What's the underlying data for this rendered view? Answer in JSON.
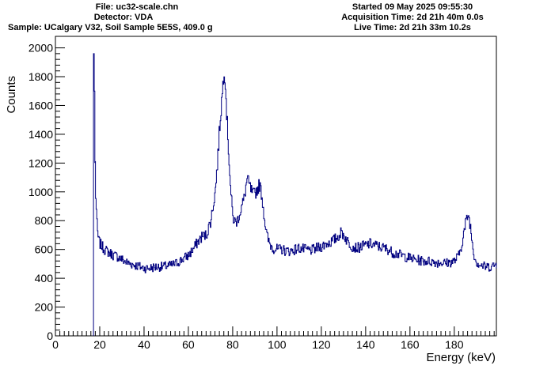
{
  "header": {
    "file": "File: uc32-scale.chn",
    "detector": "Detector: VDA",
    "sample": "Sample: UCalgary V32, Soil Sample 5E5S, 409.0 g",
    "started": "Started 09 May 2025 09:55:30",
    "acquisition": "Acquisition Time: 2d 21h 40m 0.0s",
    "live": "Live Time: 2d 21h 33m 10.2s"
  },
  "chart_data": {
    "type": "line",
    "xlabel": "Energy (keV)",
    "ylabel": "Counts",
    "xlim": [
      0,
      199
    ],
    "ylim": [
      0,
      2080
    ],
    "x_ticks": [
      0,
      20,
      40,
      60,
      80,
      100,
      120,
      140,
      160,
      180
    ],
    "y_ticks": [
      0,
      200,
      400,
      600,
      800,
      1000,
      1200,
      1400,
      1600,
      1800,
      2000
    ],
    "line_color": "#000080",
    "series": [
      {
        "x": [
          17.2,
          17.4,
          17.6,
          17.8,
          18.0,
          18.3,
          18.6,
          19.0,
          19.5,
          20,
          21,
          22,
          23,
          24,
          25,
          26,
          28,
          30,
          32,
          34,
          36,
          38,
          40,
          42,
          44,
          46,
          48,
          50,
          52,
          54,
          56,
          58,
          60,
          62,
          64,
          66,
          68,
          70,
          72,
          73,
          74,
          75,
          75.5,
          76,
          76.5,
          77,
          78,
          79,
          80,
          81,
          82,
          83,
          84,
          85,
          86,
          86.5,
          87,
          88,
          89,
          90,
          91,
          92,
          93,
          94,
          95,
          96,
          97,
          98,
          100,
          102,
          104,
          106,
          108,
          110,
          112,
          114,
          116,
          118,
          120,
          122,
          124,
          126,
          128,
          129,
          130,
          132,
          134,
          136,
          138,
          140,
          142,
          144,
          146,
          148,
          150,
          152,
          154,
          156,
          158,
          160,
          162,
          164,
          166,
          168,
          170,
          172,
          174,
          176,
          178,
          180,
          182,
          183,
          184,
          185,
          186,
          186.5,
          187,
          188,
          189,
          190,
          192,
          194,
          196,
          198,
          199
        ],
        "values": [
          0,
          1960,
          1700,
          1200,
          1000,
          900,
          780,
          700,
          660,
          640,
          620,
          600,
          590,
          580,
          570,
          560,
          550,
          530,
          510,
          500,
          490,
          480,
          470,
          470,
          475,
          480,
          480,
          485,
          490,
          500,
          520,
          540,
          560,
          600,
          650,
          690,
          700,
          800,
          1000,
          1200,
          1450,
          1650,
          1750,
          1860,
          1800,
          1600,
          1300,
          1000,
          820,
          790,
          800,
          850,
          900,
          950,
          1050,
          1100,
          1060,
          1020,
          980,
          990,
          1020,
          1050,
          980,
          850,
          720,
          660,
          630,
          610,
          600,
          600,
          590,
          590,
          600,
          610,
          600,
          595,
          595,
          610,
          620,
          640,
          650,
          670,
          700,
          720,
          700,
          650,
          620,
          610,
          620,
          630,
          640,
          630,
          620,
          610,
          600,
          580,
          570,
          560,
          550,
          540,
          530,
          525,
          520,
          520,
          515,
          510,
          510,
          505,
          510,
          520,
          560,
          620,
          700,
          780,
          840,
          820,
          780,
          650,
          550,
          510,
          490,
          480,
          480,
          490,
          500
        ]
      }
    ]
  }
}
